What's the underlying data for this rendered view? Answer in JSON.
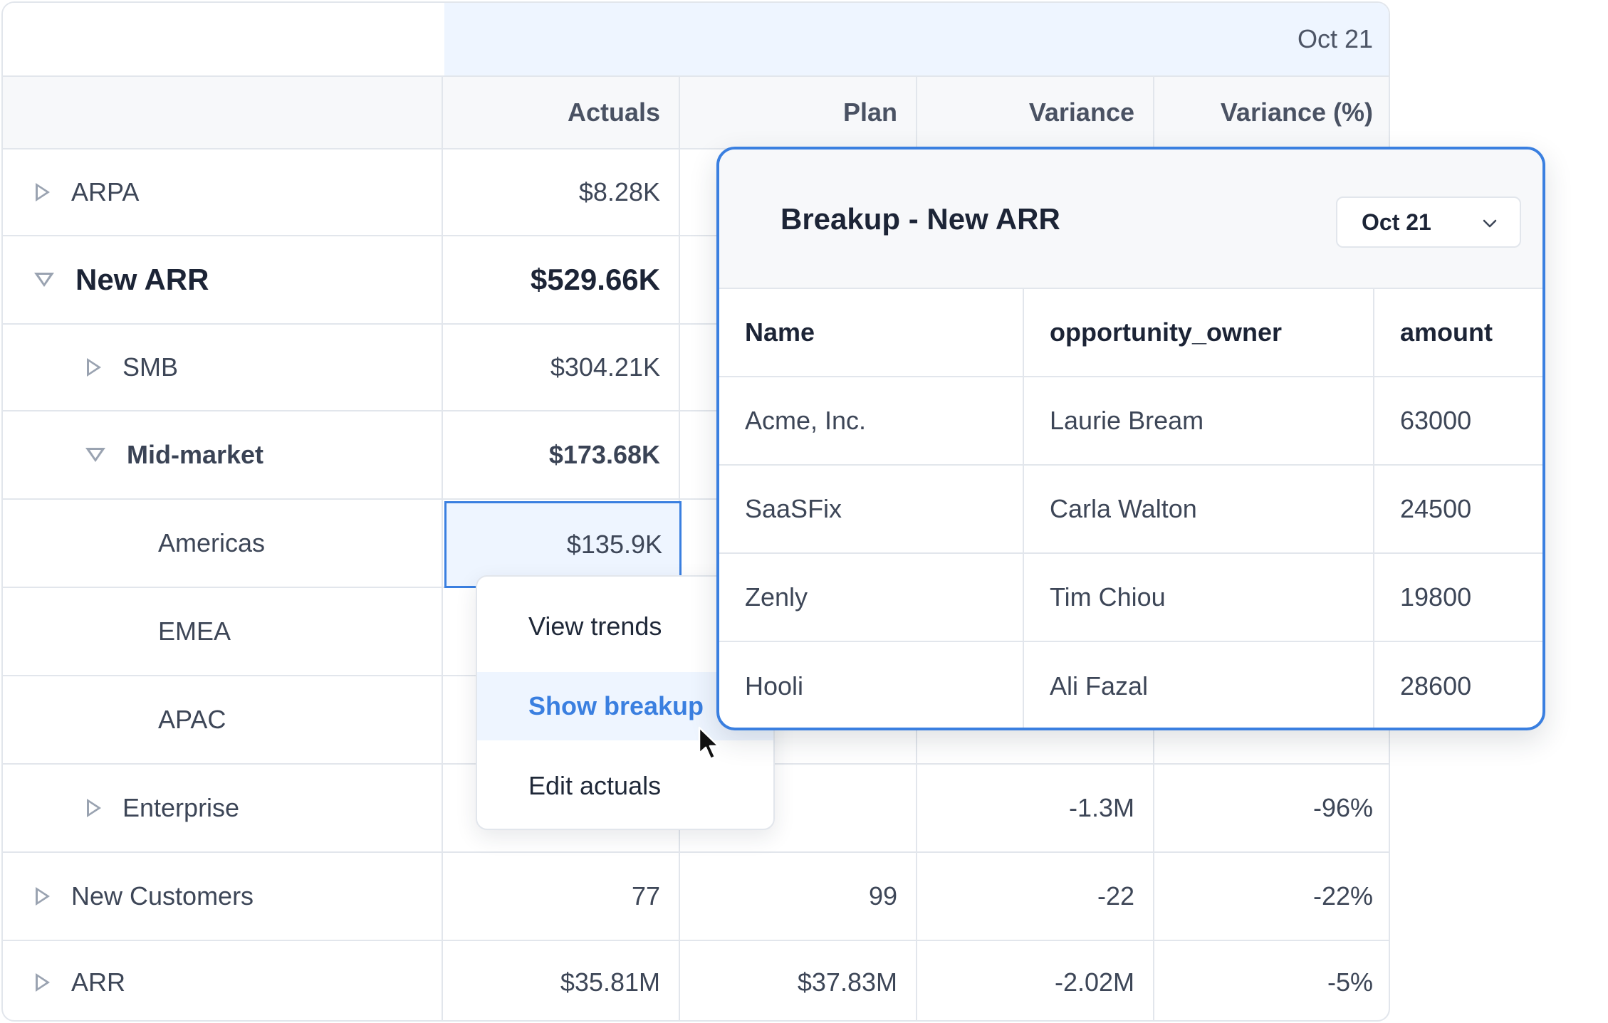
{
  "period": "Oct 21",
  "columns": [
    "Actuals",
    "Plan",
    "Variance",
    "Variance (%)"
  ],
  "rows": [
    {
      "label": "ARPA",
      "actuals": "$8.28K",
      "plan": "",
      "variance": "",
      "variance_pct": ""
    },
    {
      "label": "New ARR",
      "actuals": "$529.66K",
      "plan": "",
      "variance": "",
      "variance_pct": ""
    },
    {
      "label": "SMB",
      "actuals": "$304.21K",
      "plan": "",
      "variance": "",
      "variance_pct": ""
    },
    {
      "label": "Mid-market",
      "actuals": "$173.68K",
      "plan": "",
      "variance": "",
      "variance_pct": ""
    },
    {
      "label": "Americas",
      "actuals": "$135.9K",
      "plan": "",
      "variance": "",
      "variance_pct": ""
    },
    {
      "label": "EMEA",
      "actuals": "",
      "plan": "",
      "variance": "",
      "variance_pct": ""
    },
    {
      "label": "APAC",
      "actuals": "",
      "plan": "",
      "variance": "",
      "variance_pct": ""
    },
    {
      "label": "Enterprise",
      "actuals": "",
      "plan": "",
      "variance": "-1.3M",
      "variance_pct": "-96%"
    },
    {
      "label": "New Customers",
      "actuals": "77",
      "plan": "99",
      "variance": "-22",
      "variance_pct": "-22%"
    },
    {
      "label": "ARR",
      "actuals": "$35.81M",
      "plan": "$37.83M",
      "variance": "-2.02M",
      "variance_pct": "-5%"
    }
  ],
  "context_menu": {
    "items": [
      "View trends",
      "Show breakup",
      "Edit actuals"
    ],
    "active": "Show breakup"
  },
  "breakup_panel": {
    "title": "Breakup - New ARR",
    "period_select": "Oct 21",
    "columns": [
      "Name",
      "opportunity_owner",
      "amount"
    ],
    "rows": [
      {
        "name": "Acme, Inc.",
        "owner": "Laurie Bream",
        "amount": "63000"
      },
      {
        "name": "SaaSFix",
        "owner": "Carla Walton",
        "amount": "24500"
      },
      {
        "name": "Zenly",
        "owner": "Tim Chiou",
        "amount": "19800"
      },
      {
        "name": "Hooli",
        "owner": "Ali Fazal",
        "amount": "28600"
      }
    ]
  },
  "colors": {
    "accent": "#3a7fe0",
    "highlight_bg": "#eef5ff",
    "border": "#e2e6ec"
  }
}
